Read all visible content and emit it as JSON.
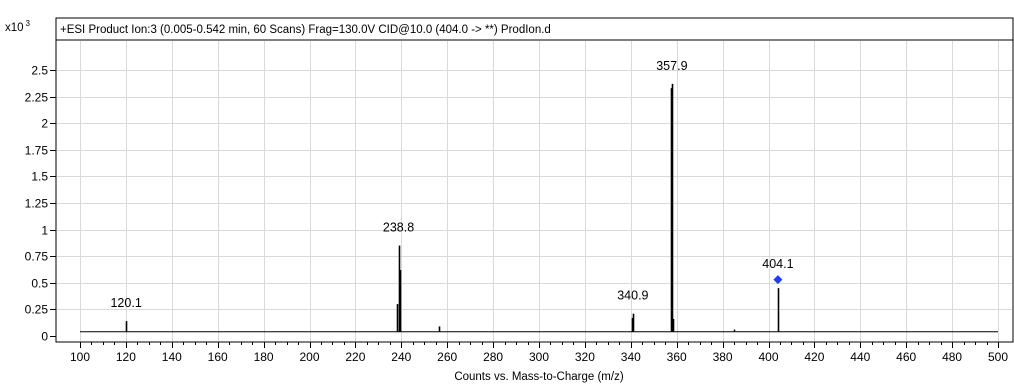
{
  "header": {
    "title": "+ESI Product Ion:3 (0.005-0.542 min, 60 Scans) Frag=130.0V CID@10.0 (404.0 -> **) ProdIon.d"
  },
  "chart_data": {
    "type": "spectrum",
    "title": "+ESI Product Ion:3 (0.005-0.542 min, 60 Scans) Frag=130.0V CID@10.0 (404.0 -> **) ProdIon.d",
    "xlabel": "Counts vs. Mass-to-Charge (m/z)",
    "ylabel": "",
    "y_multiplier_base": "x10",
    "y_multiplier_exp": "3",
    "xlim": [
      95,
      507
    ],
    "ylim": [
      0,
      2.62
    ],
    "grid": true,
    "baseline": 0.04,
    "x_ticks": [
      100,
      120,
      140,
      160,
      180,
      200,
      220,
      240,
      260,
      280,
      300,
      320,
      340,
      360,
      380,
      400,
      420,
      440,
      460,
      480,
      500
    ],
    "x_tick_labels": [
      "100",
      "120",
      "140",
      "160",
      "180",
      "200",
      "220",
      "240",
      "260",
      "280",
      "300",
      "320",
      "340",
      "360",
      "380",
      "400",
      "420",
      "440",
      "460",
      "480",
      "500"
    ],
    "y_ticks": [
      0,
      0.25,
      0.5,
      0.75,
      1,
      1.25,
      1.5,
      1.75,
      2,
      2.25,
      2.5
    ],
    "y_tick_labels": [
      "0",
      "0.25",
      "0.5",
      "0.75",
      "1",
      "1.25",
      "1.5",
      "1.75",
      "2",
      "2.25",
      "2.5"
    ],
    "peaks": [
      {
        "mz": 120.1,
        "intensity": 0.14
      },
      {
        "mz": 238.3,
        "intensity": 0.3
      },
      {
        "mz": 238.8,
        "intensity": 0.85
      },
      {
        "mz": 239.4,
        "intensity": 0.62
      },
      {
        "mz": 256.5,
        "intensity": 0.09
      },
      {
        "mz": 340.6,
        "intensity": 0.17
      },
      {
        "mz": 340.9,
        "intensity": 0.21
      },
      {
        "mz": 357.5,
        "intensity": 2.33
      },
      {
        "mz": 357.9,
        "intensity": 2.37
      },
      {
        "mz": 358.6,
        "intensity": 0.16
      },
      {
        "mz": 385.0,
        "intensity": 0.06
      },
      {
        "mz": 404.1,
        "intensity": 0.45
      }
    ],
    "peak_labels": [
      {
        "mz": 120.1,
        "intensity": 0.14,
        "text": "120.1"
      },
      {
        "mz": 238.8,
        "intensity": 0.85,
        "text": "238.8"
      },
      {
        "mz": 340.9,
        "intensity": 0.21,
        "text": "340.9"
      },
      {
        "mz": 357.9,
        "intensity": 2.37,
        "text": "357.9"
      },
      {
        "mz": 404.1,
        "intensity": 0.45,
        "text": "404.1"
      }
    ],
    "precursor_marker": {
      "mz": 404.1,
      "intensity": 0.53,
      "color": "#1e3cff"
    }
  }
}
